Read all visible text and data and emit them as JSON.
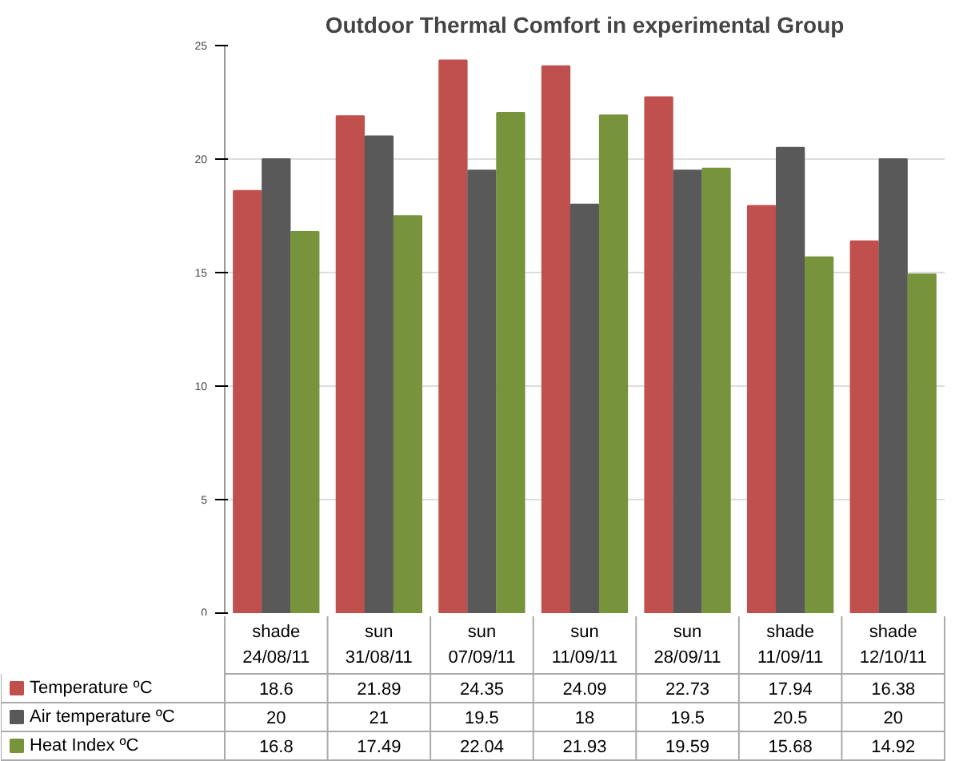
{
  "chart_data": {
    "type": "bar",
    "title": "Outdoor Thermal Comfort in experimental Group",
    "categories": [
      "shade\n24/08/11",
      "sun\n31/08/11",
      "sun\n07/09/11",
      "sun\n11/09/11",
      "sun\n28/09/11",
      "shade\n11/09/11",
      "shade\n12/10/11"
    ],
    "series": [
      {
        "name": "Temperature ºC",
        "color": "#c0504d",
        "values": [
          18.6,
          21.89,
          24.35,
          24.09,
          22.73,
          17.94,
          16.38
        ]
      },
      {
        "name": "Air temperature ºC",
        "color": "#595959",
        "values": [
          20,
          21,
          19.5,
          18,
          19.5,
          20.5,
          20
        ]
      },
      {
        "name": "Heat Index ºC",
        "color": "#77933c",
        "values": [
          16.8,
          17.49,
          22.04,
          21.93,
          19.59,
          15.68,
          14.92
        ]
      }
    ],
    "ylim": [
      0,
      25
    ],
    "yticks": [
      0,
      5,
      10,
      15,
      20,
      25
    ],
    "grid": "y",
    "legend": "bottom left",
    "data_labels": true
  }
}
